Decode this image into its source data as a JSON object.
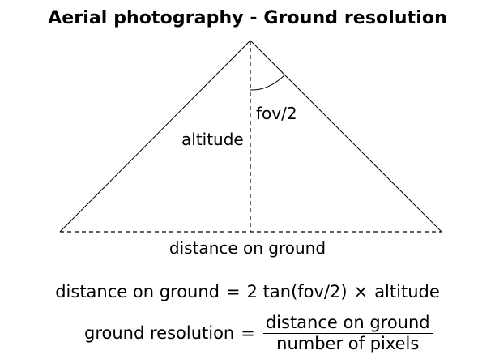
{
  "title": "Aerial photography - Ground resolution",
  "labels": {
    "fov_half": "fov/2",
    "altitude": "altitude",
    "distance_on_ground": "distance on ground"
  },
  "formulas": {
    "distance": {
      "lhs": "distance on ground",
      "equals": "=",
      "rhs_part1": "2 tan(fov/2)",
      "times": "×",
      "rhs_part2": "altitude"
    },
    "resolution": {
      "lhs": "ground resolution",
      "equals": "=",
      "numerator": "distance on ground",
      "denominator": "number of pixels"
    }
  }
}
